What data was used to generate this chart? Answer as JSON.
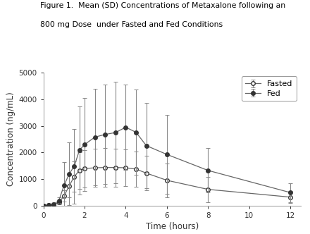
{
  "title_line1": "Figure 1.  Mean (SD) Concentrations of Metaxalone following an",
  "title_line2": "800 mg Dose  under Fasted and Fed Conditions",
  "xlabel": "Time (hours)",
  "ylabel": "Concentration (ng/mL)",
  "xlim": [
    0,
    12.5
  ],
  "ylim": [
    0,
    5000
  ],
  "yticks": [
    0,
    1000,
    2000,
    3000,
    4000,
    5000
  ],
  "xticks": [
    0,
    2,
    4,
    6,
    8,
    10,
    12
  ],
  "fasted_x": [
    0,
    0.25,
    0.5,
    0.75,
    1.0,
    1.25,
    1.5,
    1.75,
    2.0,
    2.5,
    3.0,
    3.5,
    4.0,
    4.5,
    5.0,
    6.0,
    8.0,
    12.0
  ],
  "fasted_y": [
    0,
    20,
    50,
    130,
    370,
    750,
    1100,
    1330,
    1400,
    1430,
    1440,
    1440,
    1430,
    1380,
    1230,
    960,
    620,
    330
  ],
  "fasted_sd": [
    0,
    10,
    25,
    70,
    220,
    420,
    580,
    680,
    700,
    720,
    720,
    710,
    690,
    670,
    650,
    640,
    480,
    220
  ],
  "fed_x": [
    0,
    0.25,
    0.5,
    0.75,
    1.0,
    1.25,
    1.5,
    1.75,
    2.0,
    2.5,
    3.0,
    3.5,
    4.0,
    4.5,
    5.0,
    6.0,
    8.0,
    12.0
  ],
  "fed_y": [
    0,
    20,
    60,
    200,
    760,
    1200,
    1490,
    2090,
    2300,
    2580,
    2680,
    2750,
    2950,
    2760,
    2260,
    1930,
    1330,
    500
  ],
  "fed_sd": [
    0,
    10,
    30,
    120,
    880,
    1180,
    1400,
    1650,
    1750,
    1820,
    1860,
    1900,
    1600,
    1600,
    1600,
    1480,
    830,
    360
  ],
  "line_color": "#666666",
  "fasted_marker_face": "#ffffff",
  "fasted_marker_edge": "#333333",
  "fed_marker_face": "#333333",
  "fed_marker_edge": "#333333",
  "error_color": "#888888",
  "bg_color": "#ffffff",
  "spine_color": "#aaaaaa",
  "legend_labels": [
    "Fasted",
    "Fed"
  ],
  "title_fontsize": 7.8,
  "axis_label_fontsize": 8.5,
  "tick_fontsize": 7.5,
  "legend_fontsize": 8.0
}
